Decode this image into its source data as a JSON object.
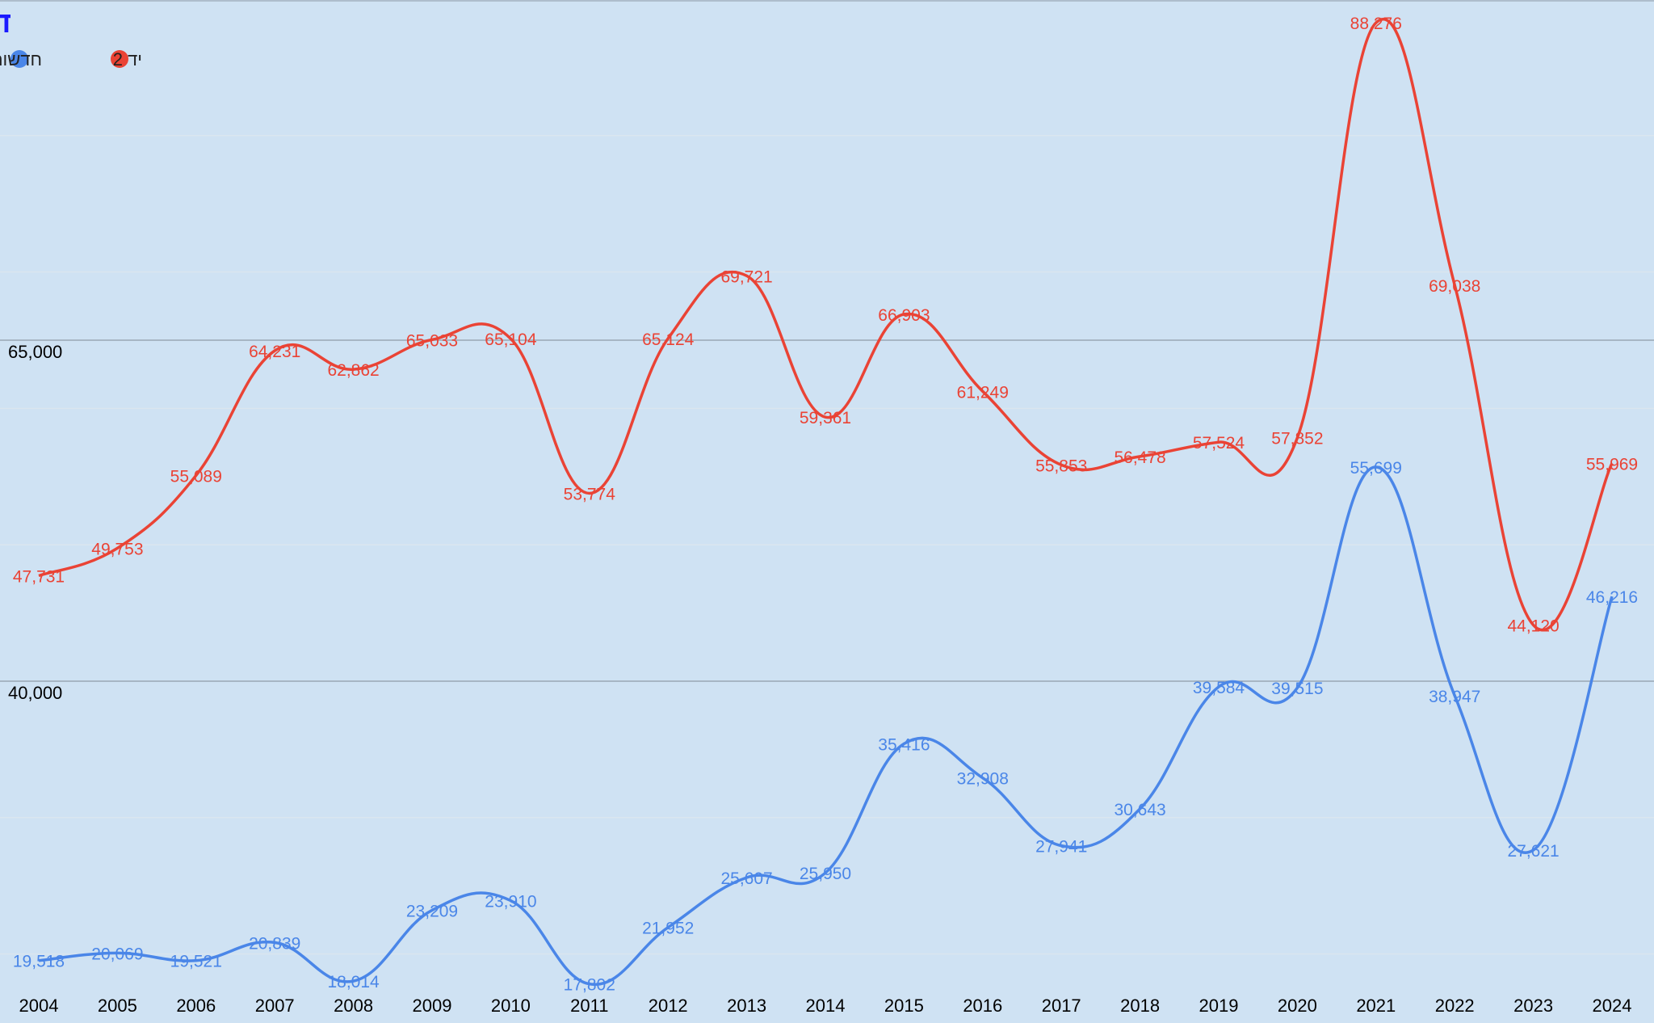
{
  "chart_data": {
    "type": "line",
    "title": "דירות שנמכרו בשנה",
    "categories": [
      "2004",
      "2005",
      "2006",
      "2007",
      "2008",
      "2009",
      "2010",
      "2011",
      "2012",
      "2013",
      "2014",
      "2015",
      "2016",
      "2017",
      "2018",
      "2019",
      "2020",
      "2021",
      "2022",
      "2023",
      "2024"
    ],
    "series": [
      {
        "name": "יד 2",
        "color": "#ea4335",
        "values": [
          47731,
          49753,
          55089,
          64231,
          62862,
          65033,
          65104,
          53774,
          65124,
          69721,
          59361,
          66903,
          61249,
          55853,
          56478,
          57524,
          57852,
          88276,
          69038,
          44120,
          55969
        ],
        "labels": [
          "47,731",
          "49,753",
          "55,089",
          "64,231",
          "62,862",
          "65,033",
          "65,104",
          "53,774",
          "65,124",
          "69,721",
          "59,361",
          "66,903",
          "61,249",
          "55,853",
          "56,478",
          "57,524",
          "57,852",
          "88,276",
          "69,038",
          "44,120",
          "55,969"
        ]
      },
      {
        "name": "חדשות",
        "color": "#4a86e8",
        "values": [
          19518,
          20069,
          19521,
          20839,
          18014,
          23209,
          23910,
          17802,
          21952,
          25607,
          25950,
          35416,
          32908,
          27941,
          30643,
          39584,
          39515,
          55699,
          38947,
          27621,
          46216
        ],
        "labels": [
          "19,518",
          "20,069",
          "19,521",
          "20,839",
          "18,014",
          "23,209",
          "23,910",
          "17,802",
          "21,952",
          "25,607",
          "25,950",
          "35,416",
          "32,908",
          "27,941",
          "30,643",
          "39,584",
          "39,515",
          "55,699",
          "38,947",
          "27,621",
          "46,216"
        ]
      }
    ],
    "y_ticks": [
      {
        "value": 65000,
        "label": "65,000"
      },
      {
        "value": 40000,
        "label": "40,000"
      }
    ],
    "ylim": [
      15000,
      90000
    ],
    "grid": true,
    "legend_position": "top-left",
    "background_color": "#cfe2f3",
    "title_color": "#1a1aff"
  }
}
